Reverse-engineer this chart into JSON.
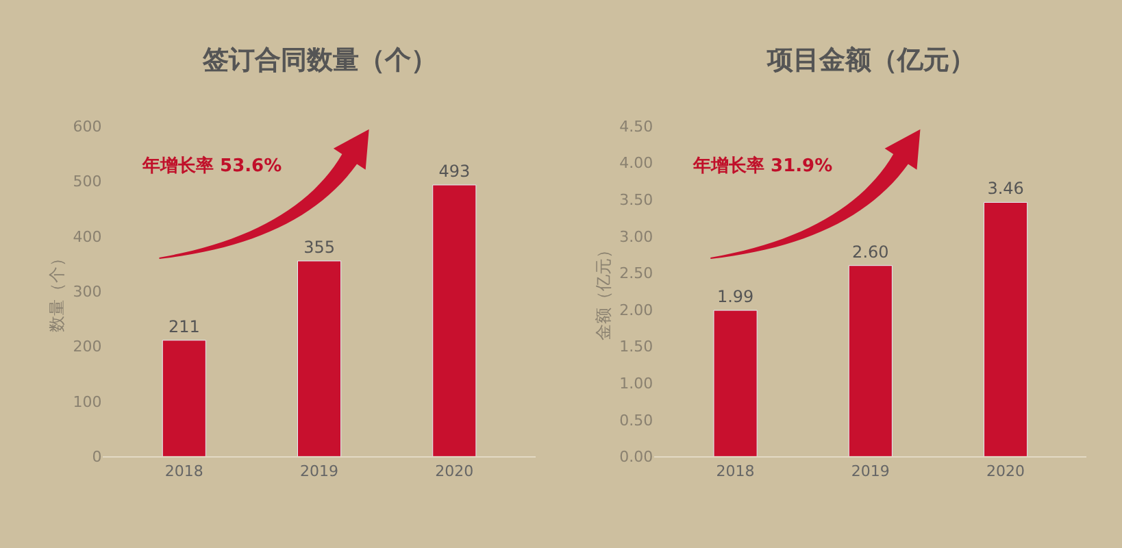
{
  "chart_data": [
    {
      "type": "bar",
      "title": "签订合同数量（个）",
      "ylabel": "数量（个）",
      "categories": [
        "2018",
        "2019",
        "2020"
      ],
      "values": [
        211,
        355,
        493
      ],
      "color": "#c8102e",
      "ylim": [
        0,
        600
      ],
      "yticks": [
        0,
        100,
        200,
        300,
        400,
        500,
        600
      ],
      "data_labels": true,
      "grid": false,
      "annotations": [
        "年增长率 53.6%"
      ]
    },
    {
      "type": "bar",
      "title": "项目金额（亿元）",
      "ylabel": "金额（亿元）",
      "categories": [
        "2018",
        "2019",
        "2020"
      ],
      "values": [
        1.99,
        2.6,
        3.46
      ],
      "value_labels": [
        "1.99",
        "2.60",
        "3.46"
      ],
      "color": "#c8102e",
      "ylim": [
        0,
        4.5
      ],
      "yticks": [
        {
          "value": 0,
          "label": "0.00"
        },
        {
          "value": 0.5,
          "label": "0.50"
        },
        {
          "value": 1,
          "label": "1.00"
        },
        {
          "value": 1.5,
          "label": "1.50"
        },
        {
          "value": 2,
          "label": "2.00"
        },
        {
          "value": 2.5,
          "label": "2.50"
        },
        {
          "value": 3,
          "label": "3.00"
        },
        {
          "value": 3.5,
          "label": "3.50"
        },
        {
          "value": 4,
          "label": "4.00"
        },
        {
          "value": 4.5,
          "label": "4.50"
        }
      ],
      "grid": false,
      "annotations": [
        "年增长率 31.9%"
      ]
    }
  ]
}
